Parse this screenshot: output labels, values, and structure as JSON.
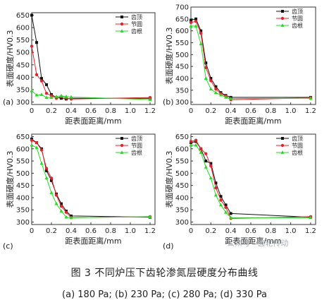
{
  "figure": {
    "title": "图 3    不同炉压下齿轮渗氮层硬度分布曲线",
    "subtitle": "(a) 180 Pa; (b) 230 Pa; (c) 280 Pa; (d) 330 Pa",
    "watermark": "公众号 · 齿轮传动"
  },
  "colors": {
    "齿顶": "#111111",
    "节圆": "#e8202a",
    "齿根": "#22dd22"
  },
  "chart_data": [
    {
      "type": "line",
      "panel_label": "(a)",
      "xlabel": "距表面距离/mm",
      "ylabel": "表面硬度/HV0.3",
      "xlim": [
        0,
        1.25
      ],
      "ylim": [
        290,
        660
      ],
      "xticks": [
        0,
        0.2,
        0.4,
        0.6,
        0.8,
        1.0,
        1.2
      ],
      "yticks": [
        300,
        350,
        400,
        450,
        500,
        550,
        600,
        650
      ],
      "legend": "top-right",
      "series": [
        {
          "name": "齿顶",
          "marker": "square",
          "x": [
            0,
            0.05,
            0.1,
            0.15,
            0.2,
            0.25,
            0.3,
            0.35,
            0.4,
            1.2
          ],
          "y": [
            650,
            540,
            395,
            370,
            330,
            318,
            315,
            312,
            315,
            315
          ]
        },
        {
          "name": "节圆",
          "marker": "circle",
          "x": [
            0,
            0.05,
            0.1,
            0.15,
            0.2,
            0.25,
            0.3,
            0.35,
            0.4,
            1.2
          ],
          "y": [
            525,
            410,
            385,
            335,
            325,
            315,
            322,
            316,
            312,
            318
          ]
        },
        {
          "name": "齿根",
          "marker": "triangle",
          "x": [
            0,
            0.05,
            0.1,
            0.15,
            0.2,
            0.25,
            0.3,
            0.35,
            0.4,
            1.2
          ],
          "y": [
            345,
            328,
            330,
            318,
            318,
            322,
            325,
            322,
            320,
            310
          ]
        }
      ]
    },
    {
      "type": "line",
      "panel_label": "(b)",
      "xlabel": "距表面距离/mm",
      "ylabel": "表面硬度/HV0.3",
      "xlim": [
        0,
        1.25
      ],
      "ylim": [
        290,
        700
      ],
      "xticks": [
        0,
        0.2,
        0.4,
        0.6,
        0.8,
        1.0,
        1.2
      ],
      "yticks": [
        300,
        350,
        400,
        450,
        500,
        550,
        600,
        650,
        700
      ],
      "legend": "top-right",
      "series": [
        {
          "name": "齿顶",
          "marker": "square",
          "x": [
            0,
            0.05,
            0.1,
            0.15,
            0.2,
            0.25,
            0.3,
            0.35,
            0.4,
            1.2
          ],
          "y": [
            645,
            650,
            600,
            465,
            400,
            365,
            340,
            328,
            320,
            320
          ]
        },
        {
          "name": "节圆",
          "marker": "circle",
          "x": [
            0,
            0.05,
            0.1,
            0.15,
            0.2,
            0.25,
            0.3,
            0.35,
            0.4,
            1.2
          ],
          "y": [
            635,
            640,
            590,
            445,
            390,
            355,
            335,
            325,
            310,
            318
          ]
        },
        {
          "name": "齿根",
          "marker": "triangle",
          "x": [
            0,
            0.05,
            0.1,
            0.15,
            0.2,
            0.25,
            0.3,
            0.35,
            0.4,
            1.2
          ],
          "y": [
            620,
            620,
            545,
            400,
            355,
            340,
            330,
            320,
            315,
            316
          ]
        }
      ]
    },
    {
      "type": "line",
      "panel_label": "(c)",
      "xlabel": "距表面距离/mm",
      "ylabel": "表面硬度/HV0.3",
      "xlim": [
        0,
        1.25
      ],
      "ylim": [
        290,
        660
      ],
      "xticks": [
        0,
        0.2,
        0.4,
        0.6,
        0.8,
        1.0,
        1.2
      ],
      "yticks": [
        300,
        350,
        400,
        450,
        500,
        550,
        600,
        650
      ],
      "legend": "top-right",
      "series": [
        {
          "name": "齿顶",
          "marker": "square",
          "x": [
            0,
            0.05,
            0.1,
            0.15,
            0.2,
            0.25,
            0.3,
            0.35,
            0.4,
            1.2
          ],
          "y": [
            640,
            625,
            600,
            510,
            470,
            415,
            375,
            345,
            325,
            320
          ]
        },
        {
          "name": "节圆",
          "marker": "circle",
          "x": [
            0,
            0.05,
            0.1,
            0.15,
            0.2,
            0.25,
            0.3,
            0.35,
            0.4,
            1.2
          ],
          "y": [
            635,
            625,
            595,
            520,
            480,
            410,
            365,
            340,
            318,
            322
          ]
        },
        {
          "name": "齿根",
          "marker": "triangle",
          "x": [
            0,
            0.05,
            0.1,
            0.15,
            0.2,
            0.25,
            0.3,
            0.35,
            0.4,
            1.2
          ],
          "y": [
            615,
            605,
            540,
            480,
            420,
            375,
            345,
            320,
            318,
            322
          ]
        }
      ]
    },
    {
      "type": "line",
      "panel_label": "(d)",
      "xlabel": "距表面距离/mm",
      "ylabel": "表面硬度/HV0.3",
      "xlim": [
        0,
        1.25
      ],
      "ylim": [
        290,
        660
      ],
      "xticks": [
        0,
        0.2,
        0.4,
        0.6,
        0.8,
        1.0,
        1.2
      ],
      "yticks": [
        300,
        350,
        400,
        450,
        500,
        550,
        600,
        650
      ],
      "legend": "top-right",
      "series": [
        {
          "name": "齿顶",
          "marker": "square",
          "x": [
            0,
            0.05,
            0.1,
            0.15,
            0.2,
            0.25,
            0.3,
            0.35,
            0.4,
            1.2
          ],
          "y": [
            625,
            630,
            600,
            550,
            540,
            460,
            405,
            370,
            335,
            320
          ]
        },
        {
          "name": "节圆",
          "marker": "circle",
          "x": [
            0,
            0.05,
            0.1,
            0.15,
            0.2,
            0.25,
            0.3,
            0.35,
            0.4,
            1.2
          ],
          "y": [
            630,
            635,
            600,
            580,
            530,
            440,
            390,
            360,
            315,
            322
          ]
        },
        {
          "name": "齿根",
          "marker": "triangle",
          "x": [
            0,
            0.05,
            0.1,
            0.15,
            0.2,
            0.25,
            0.3,
            0.35,
            0.4,
            1.2
          ],
          "y": [
            615,
            615,
            585,
            525,
            480,
            410,
            370,
            340,
            318,
            318
          ]
        }
      ]
    }
  ]
}
